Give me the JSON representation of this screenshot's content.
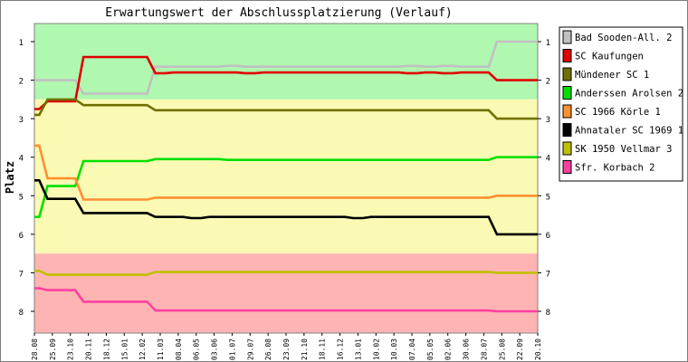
{
  "chart_data": {
    "type": "line",
    "title": "Erwartungswert der Abschlussplatzierung (Verlauf)",
    "ylabel": "Platz",
    "xlabel": "",
    "y_ticks": [
      1,
      2,
      3,
      4,
      5,
      6,
      7,
      8
    ],
    "ylim": [
      0.5,
      8.6
    ],
    "y_inverted": true,
    "x": [
      "28.08",
      "25.09",
      "23.10",
      "20.11",
      "18.12",
      "15.01",
      "12.02",
      "11.03",
      "08.04",
      "06.05",
      "03.06",
      "01.07",
      "29.07",
      "26.08",
      "23.09",
      "21.10",
      "18.11",
      "16.12",
      "13.01",
      "10.02",
      "10.03",
      "07.04",
      "05.05",
      "02.06",
      "30.06",
      "28.07",
      "25.08",
      "22.09",
      "20.10"
    ],
    "zones": [
      {
        "from": 0.5,
        "to": 2.5,
        "color": "#b0f7b0"
      },
      {
        "from": 2.5,
        "to": 6.5,
        "color": "#fafab4"
      },
      {
        "from": 6.5,
        "to": 8.6,
        "color": "#ffb4b4"
      }
    ],
    "series": [
      {
        "name": "Bad Sooden-All. 2",
        "color": "#c0c0c0",
        "values": [
          2.0,
          2.0,
          2.0,
          2.35,
          2.35,
          2.35,
          2.35,
          1.65,
          1.65,
          1.65,
          1.65,
          1.63,
          1.65,
          1.65,
          1.65,
          1.65,
          1.65,
          1.65,
          1.65,
          1.65,
          1.65,
          1.63,
          1.65,
          1.63,
          1.65,
          1.65,
          1.0,
          1.0,
          1.0
        ]
      },
      {
        "name": "SC Kaufungen",
        "color": "#e00000",
        "values": [
          2.75,
          2.55,
          2.55,
          1.4,
          1.4,
          1.4,
          1.4,
          1.82,
          1.8,
          1.8,
          1.8,
          1.8,
          1.82,
          1.8,
          1.8,
          1.8,
          1.8,
          1.8,
          1.8,
          1.8,
          1.8,
          1.82,
          1.8,
          1.82,
          1.8,
          1.8,
          2.0,
          2.0,
          2.0
        ]
      },
      {
        "name": "Mündener SC 1",
        "color": "#707000",
        "values": [
          2.9,
          2.5,
          2.5,
          2.65,
          2.65,
          2.65,
          2.65,
          2.78,
          2.78,
          2.78,
          2.78,
          2.78,
          2.78,
          2.78,
          2.78,
          2.78,
          2.78,
          2.78,
          2.78,
          2.78,
          2.78,
          2.78,
          2.78,
          2.78,
          2.78,
          2.78,
          3.0,
          3.0,
          3.0
        ]
      },
      {
        "name": "Anderssen Arolsen 2",
        "color": "#00e000",
        "values": [
          5.55,
          4.75,
          4.75,
          4.1,
          4.1,
          4.1,
          4.1,
          4.05,
          4.05,
          4.05,
          4.05,
          4.07,
          4.07,
          4.07,
          4.07,
          4.07,
          4.07,
          4.07,
          4.07,
          4.07,
          4.07,
          4.07,
          4.07,
          4.07,
          4.07,
          4.07,
          4.0,
          4.0,
          4.0
        ]
      },
      {
        "name": "SC 1966 Körle 1",
        "color": "#ff9030",
        "values": [
          3.7,
          4.55,
          4.55,
          5.1,
          5.1,
          5.1,
          5.1,
          5.05,
          5.05,
          5.05,
          5.05,
          5.05,
          5.05,
          5.05,
          5.05,
          5.05,
          5.05,
          5.05,
          5.05,
          5.05,
          5.05,
          5.05,
          5.05,
          5.05,
          5.05,
          5.05,
          5.0,
          5.0,
          5.0
        ]
      },
      {
        "name": "Ahnataler SC 1969 1",
        "color": "#000000",
        "values": [
          4.6,
          5.08,
          5.08,
          5.45,
          5.45,
          5.45,
          5.45,
          5.55,
          5.55,
          5.58,
          5.55,
          5.55,
          5.55,
          5.55,
          5.55,
          5.55,
          5.55,
          5.55,
          5.58,
          5.55,
          5.55,
          5.55,
          5.55,
          5.55,
          5.55,
          5.55,
          6.0,
          6.0,
          6.0
        ]
      },
      {
        "name": "SK 1950 Vellmar 3",
        "color": "#c0c000",
        "values": [
          6.95,
          7.05,
          7.05,
          7.05,
          7.05,
          7.05,
          7.05,
          6.98,
          6.98,
          6.98,
          6.98,
          6.98,
          6.98,
          6.98,
          6.98,
          6.98,
          6.98,
          6.98,
          6.98,
          6.98,
          6.98,
          6.98,
          6.98,
          6.98,
          6.98,
          6.98,
          7.0,
          7.0,
          7.0
        ]
      },
      {
        "name": "Sfr. Korbach 2",
        "color": "#ff40a0",
        "values": [
          7.4,
          7.45,
          7.45,
          7.75,
          7.75,
          7.75,
          7.75,
          7.98,
          7.98,
          7.98,
          7.98,
          7.98,
          7.98,
          7.98,
          7.98,
          7.98,
          7.98,
          7.98,
          7.98,
          7.98,
          7.98,
          7.98,
          7.98,
          7.98,
          7.98,
          7.98,
          8.0,
          8.0,
          8.0
        ]
      }
    ],
    "legend_position": "right",
    "grid": false
  }
}
